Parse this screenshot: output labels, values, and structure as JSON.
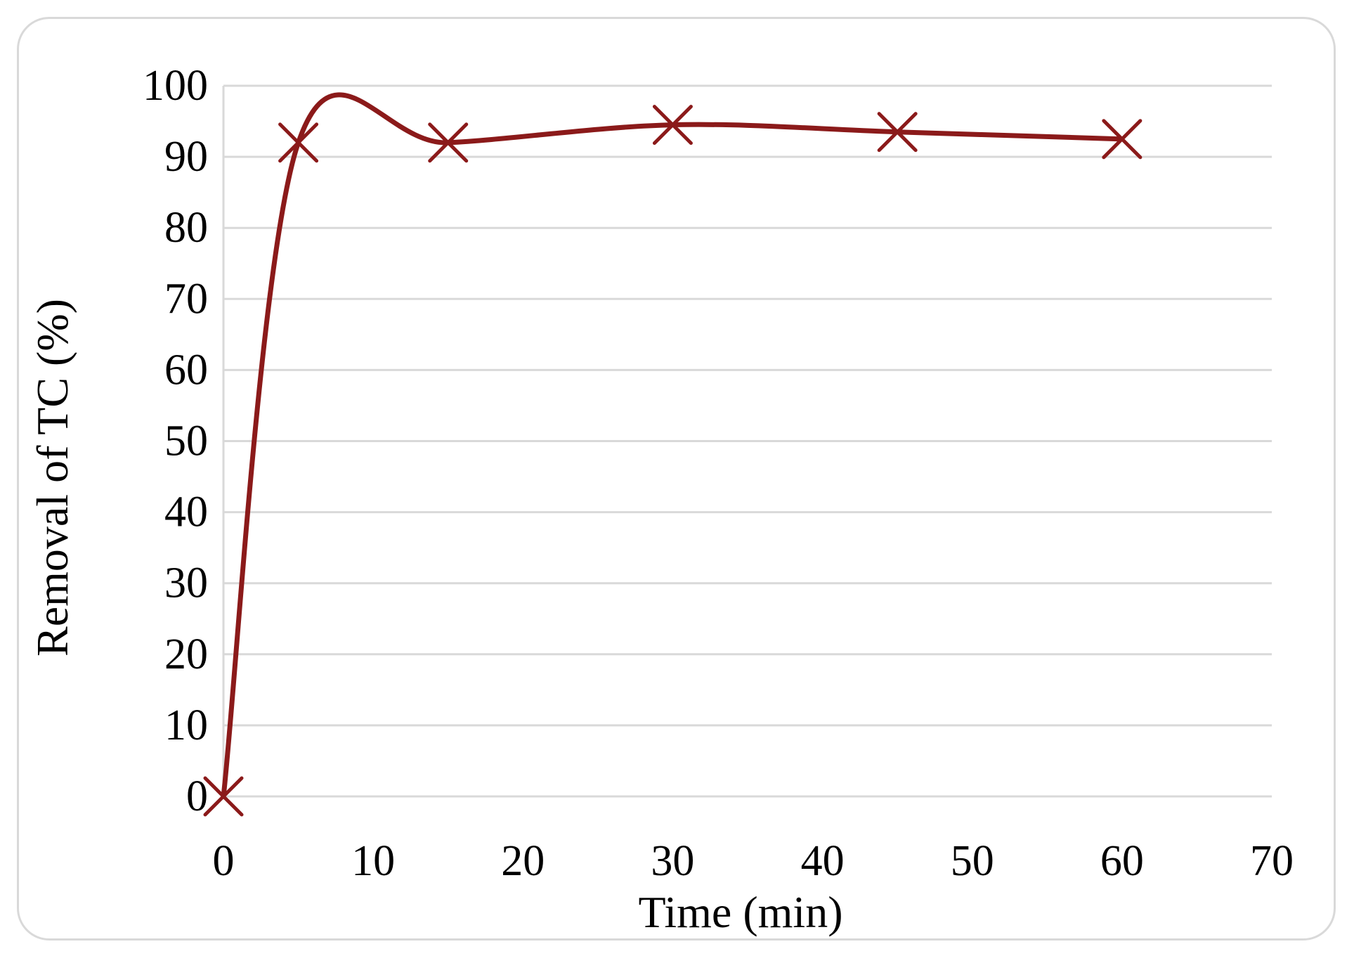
{
  "chart_data": {
    "type": "line",
    "title": "",
    "xlabel": "Time (min)",
    "ylabel": "Removal of TC (%)",
    "xlim": [
      0,
      70
    ],
    "ylim": [
      0,
      100
    ],
    "x_ticks": [
      "0",
      "10",
      "20",
      "30",
      "40",
      "50",
      "60",
      "70"
    ],
    "y_ticks": [
      "0",
      "10",
      "20",
      "30",
      "40",
      "50",
      "60",
      "70",
      "80",
      "90",
      "100"
    ],
    "grid": "horizontal",
    "legend": "none",
    "smooth": true,
    "marker": "x",
    "series": [
      {
        "x": [
          0,
          5,
          15,
          30,
          45,
          60
        ],
        "y": [
          0,
          92,
          92,
          94.5,
          93.5,
          92.5
        ],
        "color": "#8b1a1a"
      }
    ]
  }
}
